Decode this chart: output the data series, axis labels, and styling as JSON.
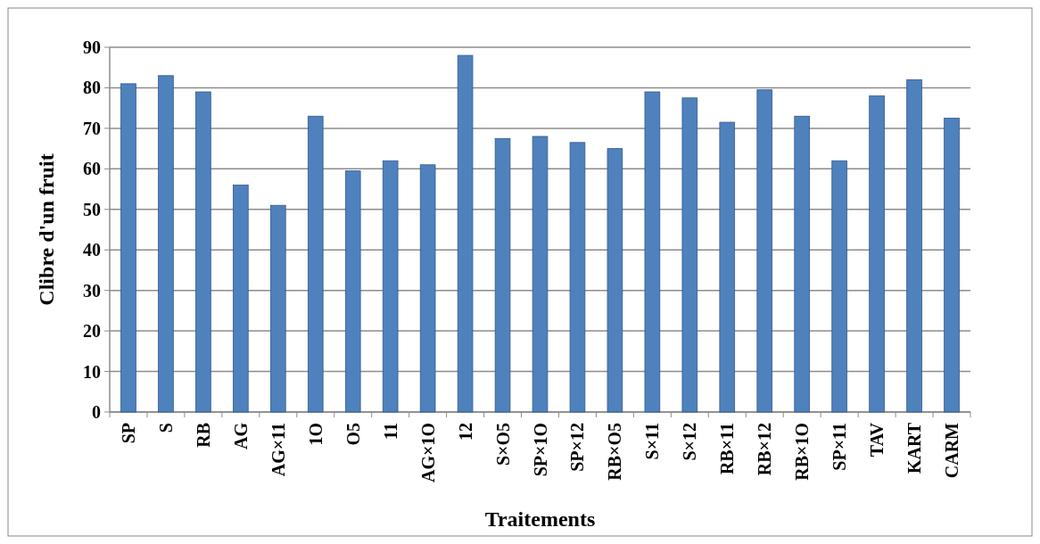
{
  "chart_data": {
    "type": "bar",
    "xlabel": "Traitements",
    "ylabel": "Clibre d'un fruit",
    "categories": [
      "SP",
      "S",
      "RB",
      "AG",
      "AG×11",
      "1O",
      "O5",
      "11",
      "AG×1O",
      "12",
      "S×O5",
      "SP×1O",
      "SP×12",
      "RB×O5",
      "S×11",
      "S×12",
      "RB×11",
      "RB×12",
      "RB×1O",
      "SP×11",
      "TAV",
      "KART",
      "CARM"
    ],
    "values": [
      81,
      83,
      79,
      56,
      51,
      73,
      59.5,
      62,
      61,
      88,
      67.5,
      68,
      66.5,
      65,
      79,
      77.5,
      71.5,
      79.5,
      73,
      62,
      78,
      82,
      72.5
    ],
    "color": "#4f81bd",
    "ylim": [
      0,
      90
    ],
    "yticks": [
      0,
      10,
      20,
      30,
      40,
      50,
      60,
      70,
      80,
      90
    ],
    "grid": "y"
  }
}
